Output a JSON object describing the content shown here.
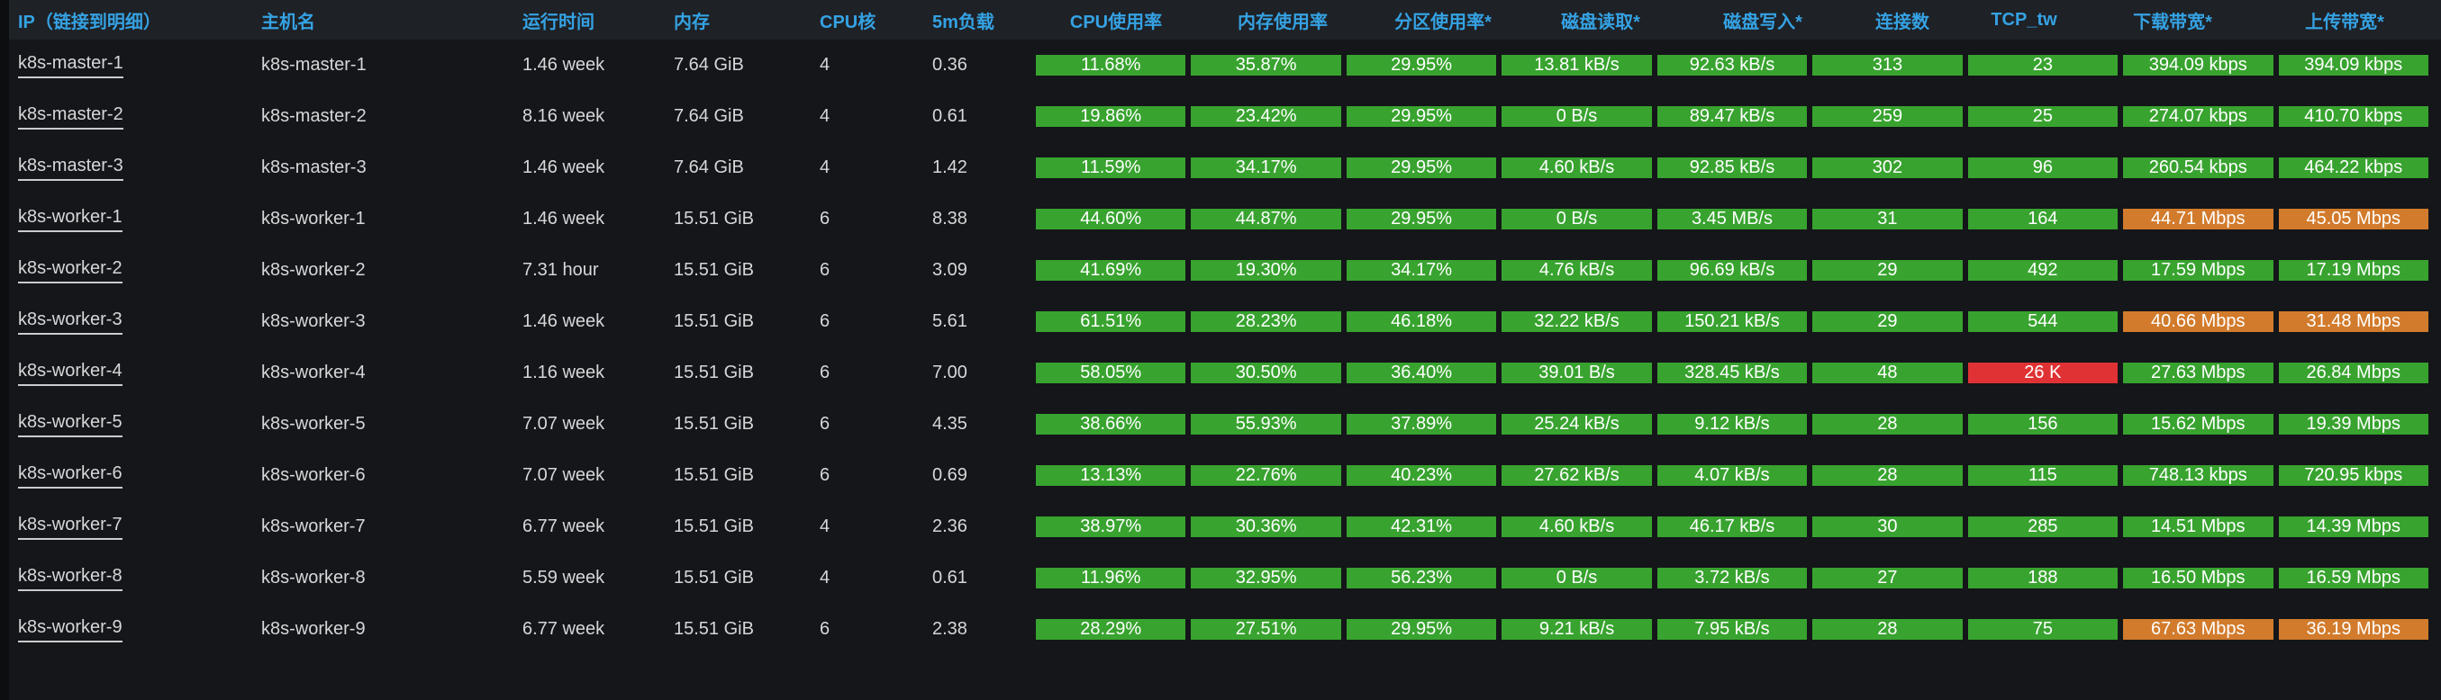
{
  "panel": {
    "name": "kubernetes-node-resource-table"
  },
  "colors": {
    "green": "#38a32f",
    "orange": "#d27b2c",
    "red": "#e03234",
    "header_text": "#35a2e3",
    "body_text": "#d5d7d9",
    "header_bg": "#1e2126",
    "page_bg": "#141619"
  },
  "table": {
    "columns": [
      {
        "key": "ip",
        "label": "IP（链接到明细）"
      },
      {
        "key": "hostname",
        "label": "主机名"
      },
      {
        "key": "uptime",
        "label": "运行时间"
      },
      {
        "key": "memory",
        "label": "内存"
      },
      {
        "key": "cores",
        "label": "CPU核"
      },
      {
        "key": "load5m",
        "label": "5m负载"
      },
      {
        "key": "cpu",
        "label": "CPU使用率"
      },
      {
        "key": "mem",
        "label": "内存使用率"
      },
      {
        "key": "part",
        "label": "分区使用率*"
      },
      {
        "key": "dread",
        "label": "磁盘读取*"
      },
      {
        "key": "dwrite",
        "label": "磁盘写入*"
      },
      {
        "key": "conns",
        "label": "连接数"
      },
      {
        "key": "tcptw",
        "label": "TCP_tw"
      },
      {
        "key": "down",
        "label": "下载带宽*"
      },
      {
        "key": "up",
        "label": "上传带宽*"
      }
    ],
    "rows": [
      {
        "ip": "k8s-master-1",
        "hostname": "k8s-master-1",
        "uptime": "1.46 week",
        "memory": "7.64 GiB",
        "cores": "4",
        "load5m": "0.36",
        "cpu": {
          "v": "11.68%",
          "s": "green"
        },
        "mem": {
          "v": "35.87%",
          "s": "green"
        },
        "part": {
          "v": "29.95%",
          "s": "green"
        },
        "dread": {
          "v": "13.81 kB/s",
          "s": "green"
        },
        "dwrite": {
          "v": "92.63 kB/s",
          "s": "green"
        },
        "conns": {
          "v": "313",
          "s": "green"
        },
        "tcptw": {
          "v": "23",
          "s": "green"
        },
        "down": {
          "v": "394.09 kbps",
          "s": "green"
        },
        "up": {
          "v": "394.09 kbps",
          "s": "green"
        }
      },
      {
        "ip": "k8s-master-2",
        "hostname": "k8s-master-2",
        "uptime": "8.16 week",
        "memory": "7.64 GiB",
        "cores": "4",
        "load5m": "0.61",
        "cpu": {
          "v": "19.86%",
          "s": "green"
        },
        "mem": {
          "v": "23.42%",
          "s": "green"
        },
        "part": {
          "v": "29.95%",
          "s": "green"
        },
        "dread": {
          "v": "0 B/s",
          "s": "green"
        },
        "dwrite": {
          "v": "89.47 kB/s",
          "s": "green"
        },
        "conns": {
          "v": "259",
          "s": "green"
        },
        "tcptw": {
          "v": "25",
          "s": "green"
        },
        "down": {
          "v": "274.07 kbps",
          "s": "green"
        },
        "up": {
          "v": "410.70 kbps",
          "s": "green"
        }
      },
      {
        "ip": "k8s-master-3",
        "hostname": "k8s-master-3",
        "uptime": "1.46 week",
        "memory": "7.64 GiB",
        "cores": "4",
        "load5m": "1.42",
        "cpu": {
          "v": "11.59%",
          "s": "green"
        },
        "mem": {
          "v": "34.17%",
          "s": "green"
        },
        "part": {
          "v": "29.95%",
          "s": "green"
        },
        "dread": {
          "v": "4.60 kB/s",
          "s": "green"
        },
        "dwrite": {
          "v": "92.85 kB/s",
          "s": "green"
        },
        "conns": {
          "v": "302",
          "s": "green"
        },
        "tcptw": {
          "v": "96",
          "s": "green"
        },
        "down": {
          "v": "260.54 kbps",
          "s": "green"
        },
        "up": {
          "v": "464.22 kbps",
          "s": "green"
        }
      },
      {
        "ip": "k8s-worker-1",
        "hostname": "k8s-worker-1",
        "uptime": "1.46 week",
        "memory": "15.51 GiB",
        "cores": "6",
        "load5m": "8.38",
        "cpu": {
          "v": "44.60%",
          "s": "green"
        },
        "mem": {
          "v": "44.87%",
          "s": "green"
        },
        "part": {
          "v": "29.95%",
          "s": "green"
        },
        "dread": {
          "v": "0 B/s",
          "s": "green"
        },
        "dwrite": {
          "v": "3.45 MB/s",
          "s": "green"
        },
        "conns": {
          "v": "31",
          "s": "green"
        },
        "tcptw": {
          "v": "164",
          "s": "green"
        },
        "down": {
          "v": "44.71 Mbps",
          "s": "orange"
        },
        "up": {
          "v": "45.05 Mbps",
          "s": "orange"
        }
      },
      {
        "ip": "k8s-worker-2",
        "hostname": "k8s-worker-2",
        "uptime": "7.31 hour",
        "memory": "15.51 GiB",
        "cores": "6",
        "load5m": "3.09",
        "cpu": {
          "v": "41.69%",
          "s": "green"
        },
        "mem": {
          "v": "19.30%",
          "s": "green"
        },
        "part": {
          "v": "34.17%",
          "s": "green"
        },
        "dread": {
          "v": "4.76 kB/s",
          "s": "green"
        },
        "dwrite": {
          "v": "96.69 kB/s",
          "s": "green"
        },
        "conns": {
          "v": "29",
          "s": "green"
        },
        "tcptw": {
          "v": "492",
          "s": "green"
        },
        "down": {
          "v": "17.59 Mbps",
          "s": "green"
        },
        "up": {
          "v": "17.19 Mbps",
          "s": "green"
        }
      },
      {
        "ip": "k8s-worker-3",
        "hostname": "k8s-worker-3",
        "uptime": "1.46 week",
        "memory": "15.51 GiB",
        "cores": "6",
        "load5m": "5.61",
        "cpu": {
          "v": "61.51%",
          "s": "green"
        },
        "mem": {
          "v": "28.23%",
          "s": "green"
        },
        "part": {
          "v": "46.18%",
          "s": "green"
        },
        "dread": {
          "v": "32.22 kB/s",
          "s": "green"
        },
        "dwrite": {
          "v": "150.21 kB/s",
          "s": "green"
        },
        "conns": {
          "v": "29",
          "s": "green"
        },
        "tcptw": {
          "v": "544",
          "s": "green"
        },
        "down": {
          "v": "40.66 Mbps",
          "s": "orange"
        },
        "up": {
          "v": "31.48 Mbps",
          "s": "orange"
        }
      },
      {
        "ip": "k8s-worker-4",
        "hostname": "k8s-worker-4",
        "uptime": "1.16 week",
        "memory": "15.51 GiB",
        "cores": "6",
        "load5m": "7.00",
        "cpu": {
          "v": "58.05%",
          "s": "green"
        },
        "mem": {
          "v": "30.50%",
          "s": "green"
        },
        "part": {
          "v": "36.40%",
          "s": "green"
        },
        "dread": {
          "v": "39.01 B/s",
          "s": "green"
        },
        "dwrite": {
          "v": "328.45 kB/s",
          "s": "green"
        },
        "conns": {
          "v": "48",
          "s": "green"
        },
        "tcptw": {
          "v": "26 K",
          "s": "red"
        },
        "down": {
          "v": "27.63 Mbps",
          "s": "green"
        },
        "up": {
          "v": "26.84 Mbps",
          "s": "green"
        }
      },
      {
        "ip": "k8s-worker-5",
        "hostname": "k8s-worker-5",
        "uptime": "7.07 week",
        "memory": "15.51 GiB",
        "cores": "6",
        "load5m": "4.35",
        "cpu": {
          "v": "38.66%",
          "s": "green"
        },
        "mem": {
          "v": "55.93%",
          "s": "green"
        },
        "part": {
          "v": "37.89%",
          "s": "green"
        },
        "dread": {
          "v": "25.24 kB/s",
          "s": "green"
        },
        "dwrite": {
          "v": "9.12 kB/s",
          "s": "green"
        },
        "conns": {
          "v": "28",
          "s": "green"
        },
        "tcptw": {
          "v": "156",
          "s": "green"
        },
        "down": {
          "v": "15.62 Mbps",
          "s": "green"
        },
        "up": {
          "v": "19.39 Mbps",
          "s": "green"
        }
      },
      {
        "ip": "k8s-worker-6",
        "hostname": "k8s-worker-6",
        "uptime": "7.07 week",
        "memory": "15.51 GiB",
        "cores": "6",
        "load5m": "0.69",
        "cpu": {
          "v": "13.13%",
          "s": "green"
        },
        "mem": {
          "v": "22.76%",
          "s": "green"
        },
        "part": {
          "v": "40.23%",
          "s": "green"
        },
        "dread": {
          "v": "27.62 kB/s",
          "s": "green"
        },
        "dwrite": {
          "v": "4.07 kB/s",
          "s": "green"
        },
        "conns": {
          "v": "28",
          "s": "green"
        },
        "tcptw": {
          "v": "115",
          "s": "green"
        },
        "down": {
          "v": "748.13 kbps",
          "s": "green"
        },
        "up": {
          "v": "720.95 kbps",
          "s": "green"
        }
      },
      {
        "ip": "k8s-worker-7",
        "hostname": "k8s-worker-7",
        "uptime": "6.77 week",
        "memory": "15.51 GiB",
        "cores": "4",
        "load5m": "2.36",
        "cpu": {
          "v": "38.97%",
          "s": "green"
        },
        "mem": {
          "v": "30.36%",
          "s": "green"
        },
        "part": {
          "v": "42.31%",
          "s": "green"
        },
        "dread": {
          "v": "4.60 kB/s",
          "s": "green"
        },
        "dwrite": {
          "v": "46.17 kB/s",
          "s": "green"
        },
        "conns": {
          "v": "30",
          "s": "green"
        },
        "tcptw": {
          "v": "285",
          "s": "green"
        },
        "down": {
          "v": "14.51 Mbps",
          "s": "green"
        },
        "up": {
          "v": "14.39 Mbps",
          "s": "green"
        }
      },
      {
        "ip": "k8s-worker-8",
        "hostname": "k8s-worker-8",
        "uptime": "5.59 week",
        "memory": "15.51 GiB",
        "cores": "4",
        "load5m": "0.61",
        "cpu": {
          "v": "11.96%",
          "s": "green"
        },
        "mem": {
          "v": "32.95%",
          "s": "green"
        },
        "part": {
          "v": "56.23%",
          "s": "green"
        },
        "dread": {
          "v": "0 B/s",
          "s": "green"
        },
        "dwrite": {
          "v": "3.72 kB/s",
          "s": "green"
        },
        "conns": {
          "v": "27",
          "s": "green"
        },
        "tcptw": {
          "v": "188",
          "s": "green"
        },
        "down": {
          "v": "16.50 Mbps",
          "s": "green"
        },
        "up": {
          "v": "16.59 Mbps",
          "s": "green"
        }
      },
      {
        "ip": "k8s-worker-9",
        "hostname": "k8s-worker-9",
        "uptime": "6.77 week",
        "memory": "15.51 GiB",
        "cores": "6",
        "load5m": "2.38",
        "cpu": {
          "v": "28.29%",
          "s": "green"
        },
        "mem": {
          "v": "27.51%",
          "s": "green"
        },
        "part": {
          "v": "29.95%",
          "s": "green"
        },
        "dread": {
          "v": "9.21 kB/s",
          "s": "green"
        },
        "dwrite": {
          "v": "7.95 kB/s",
          "s": "green"
        },
        "conns": {
          "v": "28",
          "s": "green"
        },
        "tcptw": {
          "v": "75",
          "s": "green"
        },
        "down": {
          "v": "67.63 Mbps",
          "s": "orange"
        },
        "up": {
          "v": "36.19 Mbps",
          "s": "orange"
        }
      }
    ]
  }
}
